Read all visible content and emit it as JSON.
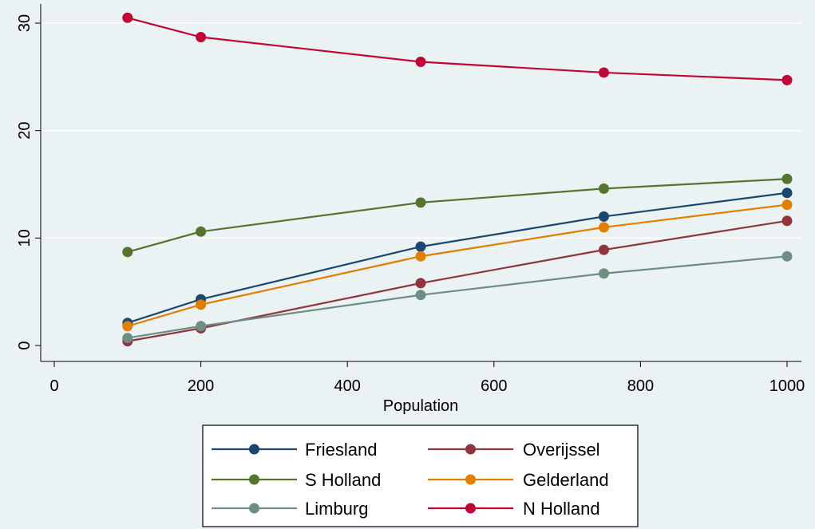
{
  "chart_data": {
    "type": "line",
    "title": "",
    "xlabel": "Population",
    "ylabel": "",
    "x": [
      100,
      200,
      500,
      750,
      1000
    ],
    "xlim": [
      0,
      1000
    ],
    "ylim": [
      0,
      31
    ],
    "xticks": [
      0,
      200,
      400,
      600,
      800,
      1000
    ],
    "yticks": [
      0,
      10,
      20,
      30
    ],
    "grid": true,
    "legend_position": "bottom",
    "series": [
      {
        "name": "Friesland",
        "color": "#1a476f",
        "values": [
          2.1,
          4.3,
          9.2,
          12.0,
          14.2
        ]
      },
      {
        "name": "Overijssel",
        "color": "#90353b",
        "values": [
          0.4,
          1.6,
          5.8,
          8.9,
          11.6
        ]
      },
      {
        "name": "S Holland",
        "color": "#55752f",
        "values": [
          8.7,
          10.6,
          13.3,
          14.6,
          15.5
        ]
      },
      {
        "name": "Gelderland",
        "color": "#e37e00",
        "values": [
          1.8,
          3.8,
          8.3,
          11.0,
          13.1
        ]
      },
      {
        "name": "Limburg",
        "color": "#6e8e84",
        "values": [
          0.7,
          1.8,
          4.7,
          6.7,
          8.3
        ]
      },
      {
        "name": "N Holland",
        "color": "#c10534",
        "values": [
          30.5,
          28.7,
          26.4,
          25.4,
          24.7
        ]
      }
    ]
  }
}
